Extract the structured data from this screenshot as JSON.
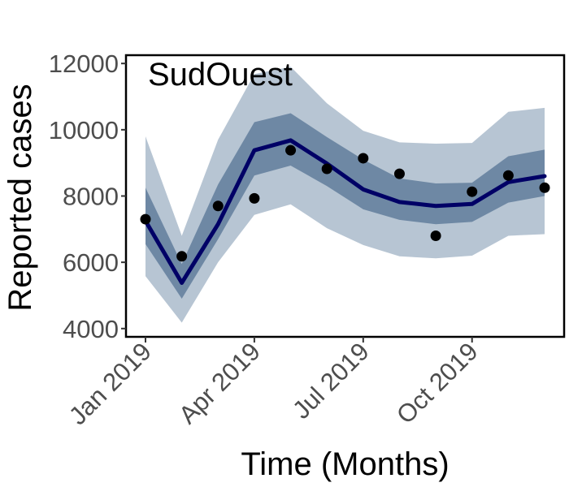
{
  "chart_data": {
    "type": "line",
    "title": "",
    "panel_label": "SudOuest",
    "xlabel": "Time (Months)",
    "ylabel": "Reported cases",
    "x": [
      "2019-01",
      "2019-02",
      "2019-03",
      "2019-04",
      "2019-05",
      "2019-06",
      "2019-07",
      "2019-08",
      "2019-09",
      "2019-10",
      "2019-11",
      "2019-12"
    ],
    "x_ticks": [
      {
        "x": "2019-01",
        "label": "Jan 2019"
      },
      {
        "x": "2019-04",
        "label": "Apr 2019"
      },
      {
        "x": "2019-07",
        "label": "Jul 2019"
      },
      {
        "x": "2019-10",
        "label": "Oct 2019"
      }
    ],
    "y_ticks": [
      4000,
      6000,
      8000,
      10000,
      12000
    ],
    "ylim": [
      3750,
      12250
    ],
    "grid": false,
    "legend": "none",
    "series": [
      {
        "kind": "line",
        "values": [
          7250,
          5380,
          7150,
          9380,
          9680,
          8980,
          8200,
          7820,
          7700,
          7760,
          8420,
          8600
        ],
        "color": "#000066"
      },
      {
        "kind": "points",
        "values": [
          7300,
          6180,
          7700,
          7930,
          9380,
          8820,
          9140,
          8670,
          6800,
          8130,
          8620,
          8250
        ],
        "color": "#000000"
      },
      {
        "kind": "band",
        "level": "inner",
        "lower": [
          6550,
          4900,
          6700,
          8620,
          8920,
          8300,
          7600,
          7280,
          7150,
          7220,
          7800,
          8000
        ],
        "upper": [
          8250,
          5950,
          8350,
          10230,
          10500,
          9780,
          9100,
          8530,
          8380,
          8400,
          9200,
          9400
        ],
        "color": "#6e88a4"
      },
      {
        "kind": "band",
        "level": "outer",
        "lower": [
          5580,
          4180,
          6000,
          7430,
          7750,
          7030,
          6520,
          6180,
          6120,
          6200,
          6800,
          6850
        ],
        "upper": [
          9800,
          6800,
          9700,
          11680,
          11900,
          10800,
          9970,
          9620,
          9580,
          9600,
          10540,
          10660
        ],
        "color": "#b7c5d3"
      }
    ]
  }
}
